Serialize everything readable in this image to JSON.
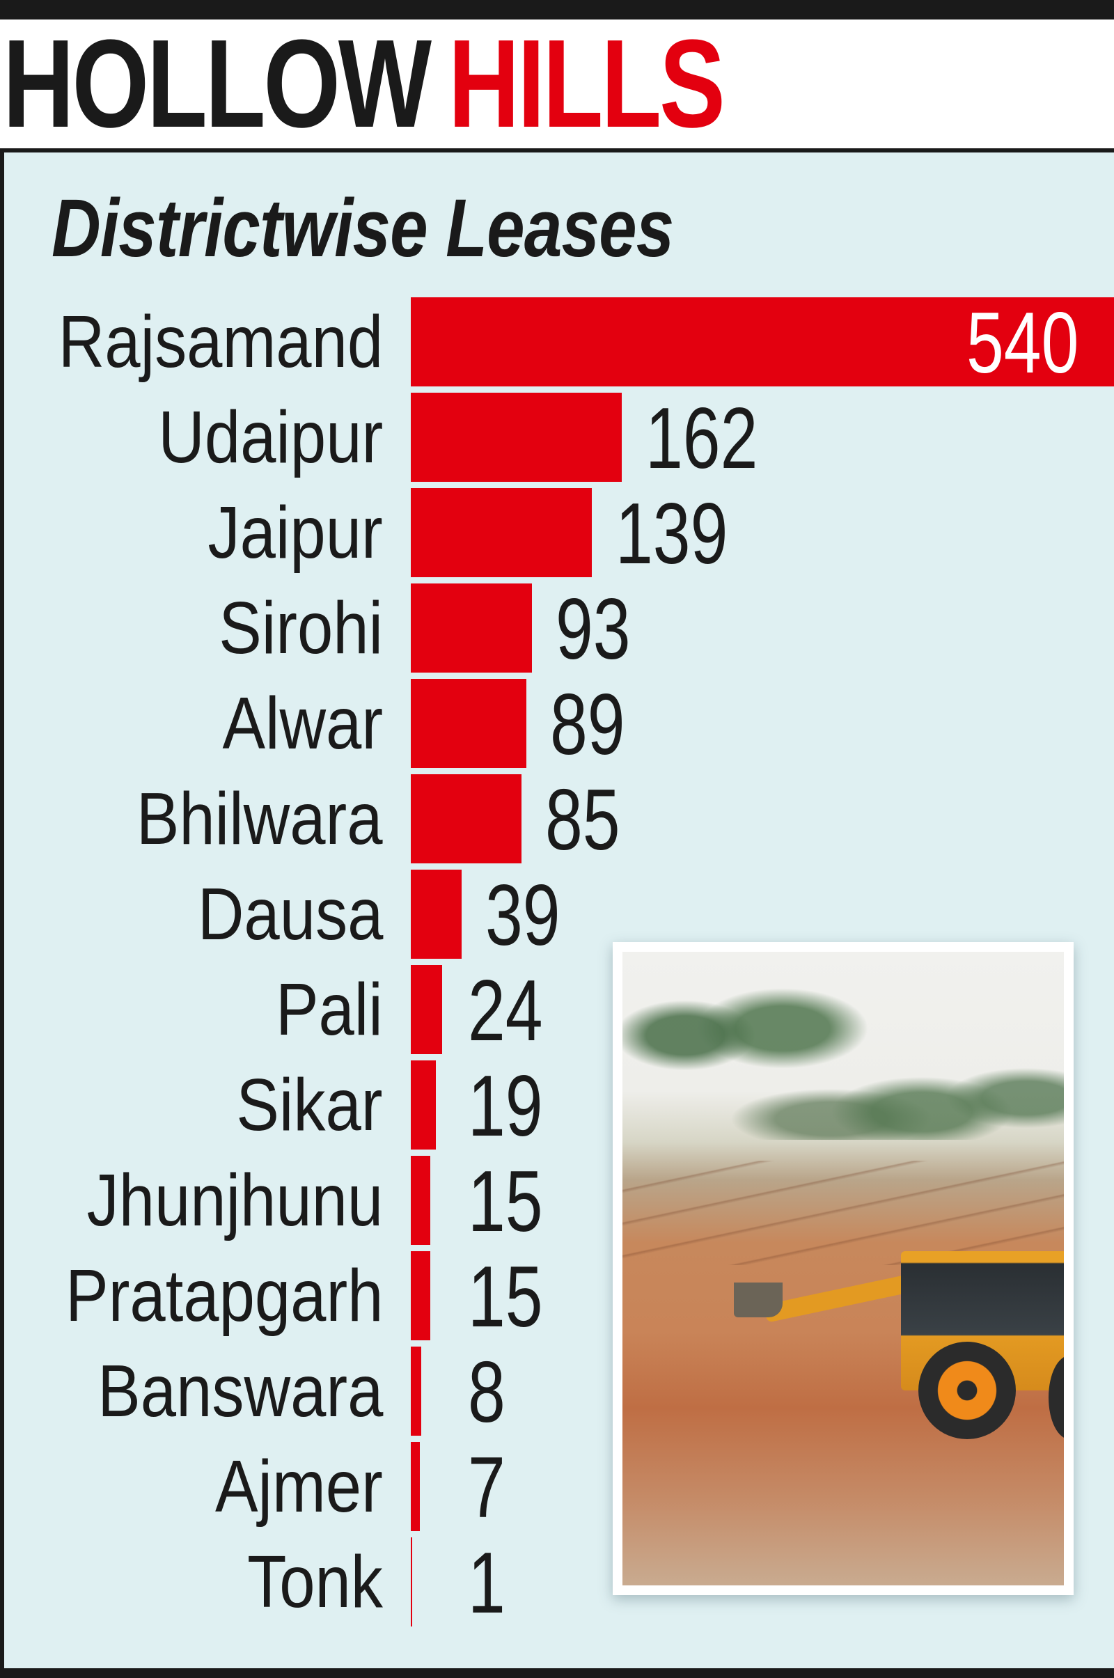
{
  "header": {
    "title_part1": "HOLLOW",
    "title_part2": "HILLS",
    "subtitle": "Districtwise Leases"
  },
  "colors": {
    "accent_red": "#e3000f",
    "panel_background": "#dff0f2",
    "text_dark": "#1a1a1a"
  },
  "photo": {
    "description": "backhoe-excavator-at-hillside-mining-site"
  },
  "chart_data": {
    "type": "bar",
    "orientation": "horizontal",
    "title": "HOLLOW HILLS",
    "subtitle": "Districtwise Leases",
    "xlabel": "",
    "ylabel": "",
    "grid": false,
    "legend": null,
    "categories": [
      "Rajsamand",
      "Udaipur",
      "Jaipur",
      "Sirohi",
      "Alwar",
      "Bhilwara",
      "Dausa",
      "Pali",
      "Sikar",
      "Jhunjhunu",
      "Pratapgarh",
      "Banswara",
      "Ajmer",
      "Tonk"
    ],
    "values": [
      540,
      162,
      139,
      93,
      89,
      85,
      39,
      24,
      19,
      15,
      15,
      8,
      7,
      1
    ],
    "value_labels": [
      "540",
      "162",
      "139",
      "93",
      "89",
      "85",
      "39",
      "24",
      "19",
      "15",
      "15",
      "8",
      "7",
      "1"
    ],
    "xlim": [
      0,
      540
    ]
  }
}
